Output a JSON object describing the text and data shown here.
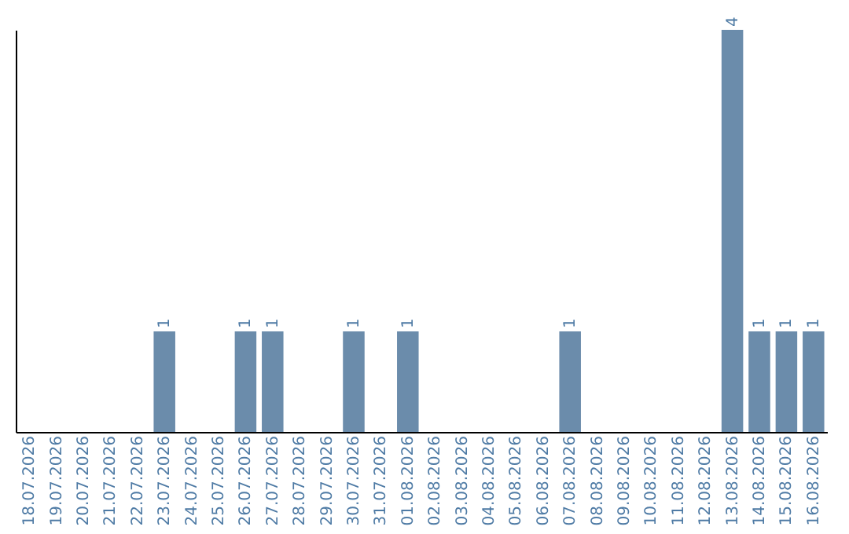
{
  "chart_data": {
    "type": "bar",
    "categories": [
      "18.07.2026",
      "19.07.2026",
      "20.07.2026",
      "21.07.2026",
      "22.07.2026",
      "23.07.2026",
      "24.07.2026",
      "25.07.2026",
      "26.07.2026",
      "27.07.2026",
      "28.07.2026",
      "29.07.2026",
      "30.07.2026",
      "31.07.2026",
      "01.08.2026",
      "02.08.2026",
      "03.08.2026",
      "04.08.2026",
      "05.08.2026",
      "06.08.2026",
      "07.08.2026",
      "08.08.2026",
      "09.08.2026",
      "10.08.2026",
      "11.08.2026",
      "12.08.2026",
      "13.08.2026",
      "14.08.2026",
      "15.08.2026",
      "16.08.2026"
    ],
    "values": [
      0,
      0,
      0,
      0,
      0,
      1,
      0,
      0,
      1,
      1,
      0,
      0,
      1,
      0,
      1,
      0,
      0,
      0,
      0,
      0,
      1,
      0,
      0,
      0,
      0,
      0,
      4,
      1,
      1,
      1
    ],
    "value_labels": [
      null,
      null,
      null,
      null,
      null,
      "1",
      null,
      null,
      "1",
      "1",
      null,
      null,
      "1",
      null,
      "1",
      null,
      null,
      null,
      null,
      null,
      "1",
      null,
      null,
      null,
      null,
      null,
      "4",
      "1",
      "1",
      "1"
    ],
    "color": "#6b8cab",
    "grid": false,
    "tick_labels": "x"
  }
}
